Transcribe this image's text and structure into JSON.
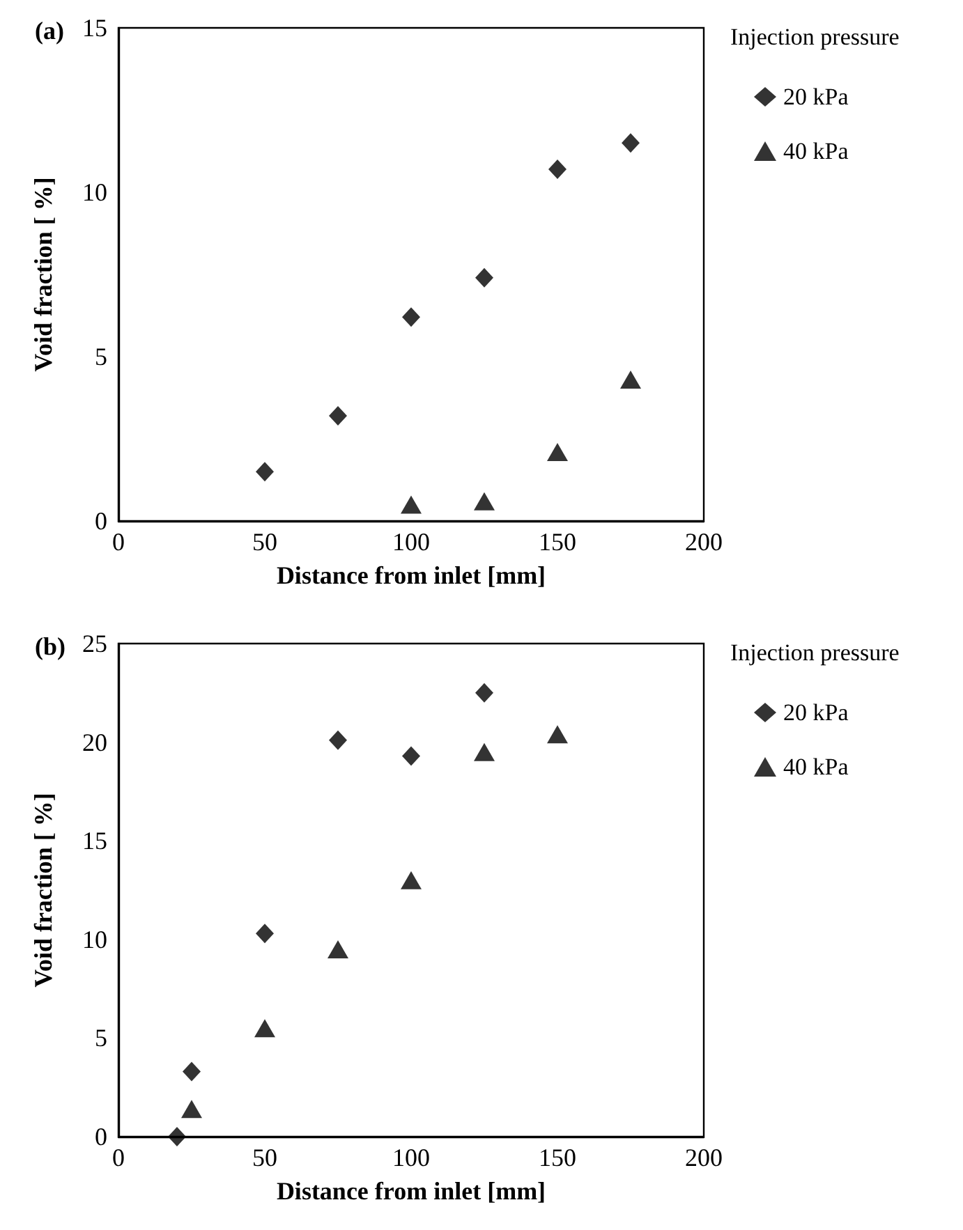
{
  "chart_data": [
    {
      "type": "scatter",
      "title": "(a)",
      "xlabel": "Distance from inlet [mm]",
      "ylabel": "Void fraction [ %]",
      "legend_title": "Injection pressure",
      "legend": "right",
      "grid": false,
      "xlim": [
        0,
        200
      ],
      "xticks": [
        0,
        50,
        100,
        150,
        200
      ],
      "ylim": [
        0,
        15
      ],
      "yticks": [
        0,
        5,
        10,
        15
      ],
      "series": [
        {
          "name": "20 kPa",
          "color": "#000000",
          "marker": "diamond",
          "x": [
            50,
            75,
            100,
            125,
            150,
            175
          ],
          "values": [
            1.5,
            3.2,
            6.2,
            7.4,
            10.7,
            11.5
          ]
        },
        {
          "name": "40 kPa",
          "color": "#000000",
          "marker": "triangle",
          "x": [
            100,
            125,
            150,
            175
          ],
          "values": [
            0.5,
            0.6,
            2.1,
            4.3
          ]
        }
      ]
    },
    {
      "type": "scatter",
      "title": "(b)",
      "xlabel": "Distance from inlet [mm]",
      "ylabel": "Void fraction [ %]",
      "legend_title": "Injection pressure",
      "legend": "right",
      "grid": false,
      "xlim": [
        0,
        200
      ],
      "xticks": [
        0,
        50,
        100,
        150,
        200
      ],
      "ylim": [
        0,
        25
      ],
      "yticks": [
        0,
        5,
        10,
        15,
        20,
        25
      ],
      "series": [
        {
          "name": "20 kPa",
          "color": "#000000",
          "marker": "diamond",
          "x": [
            20,
            25,
            50,
            75,
            100,
            125
          ],
          "values": [
            0,
            3.3,
            10.3,
            20.1,
            19.3,
            22.5
          ]
        },
        {
          "name": "40 kPa",
          "color": "#000000",
          "marker": "triangle",
          "x": [
            25,
            50,
            75,
            100,
            125,
            150
          ],
          "values": [
            1.4,
            5.5,
            9.5,
            13.0,
            19.5,
            20.4
          ]
        }
      ]
    }
  ]
}
